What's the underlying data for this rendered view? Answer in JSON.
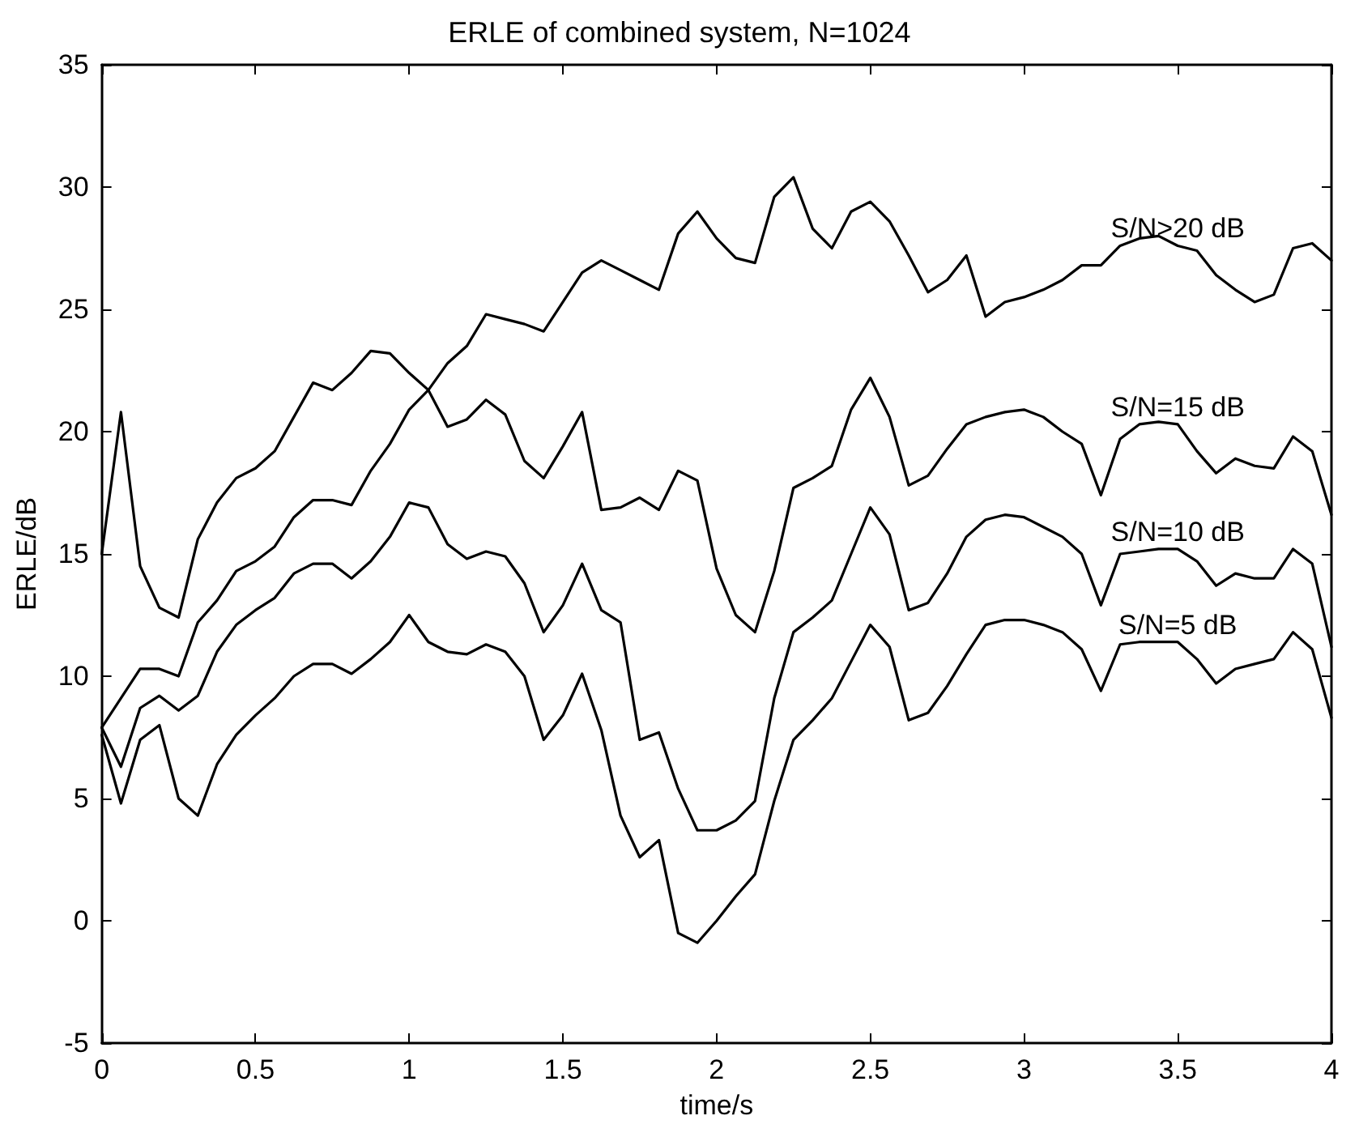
{
  "chart_data": {
    "type": "line",
    "title": "ERLE of combined system, N=1024",
    "xlabel": "time/s",
    "ylabel": "ERLE/dB",
    "x": [
      0,
      0.0625,
      0.125,
      0.1875,
      0.25,
      0.3125,
      0.375,
      0.4375,
      0.5,
      0.5625,
      0.625,
      0.6875,
      0.75,
      0.8125,
      0.875,
      0.9375,
      1,
      1.0625,
      1.125,
      1.1875,
      1.25,
      1.3125,
      1.375,
      1.4375,
      1.5,
      1.5625,
      1.625,
      1.6875,
      1.75,
      1.8125,
      1.875,
      1.9375,
      2,
      2.0625,
      2.125,
      2.1875,
      2.25,
      2.3125,
      2.375,
      2.4375,
      2.5,
      2.5625,
      2.625,
      2.6875,
      2.75,
      2.8125,
      2.875,
      2.9375,
      3,
      3.0625,
      3.125,
      3.1875,
      3.25,
      3.3125,
      3.375,
      3.4375,
      3.5,
      3.5625,
      3.625,
      3.6875,
      3.75,
      3.8125,
      3.875,
      3.9375,
      4
    ],
    "series": [
      {
        "name": "S/N>20 dB",
        "color": "#000000",
        "values": [
          7.9,
          9.1,
          10.3,
          10.3,
          10.0,
          12.2,
          13.1,
          14.3,
          14.7,
          15.3,
          16.5,
          17.2,
          17.2,
          17.0,
          18.4,
          19.5,
          20.9,
          21.7,
          22.8,
          23.5,
          24.8,
          24.6,
          24.4,
          24.1,
          25.3,
          26.5,
          27.0,
          26.6,
          26.2,
          25.8,
          28.1,
          29.0,
          27.9,
          27.1,
          26.9,
          29.6,
          30.4,
          28.3,
          27.5,
          29.0,
          29.4,
          28.6,
          27.2,
          25.7,
          26.2,
          27.2,
          24.7,
          25.3,
          25.5,
          25.8,
          26.2,
          26.8,
          26.8,
          27.6,
          27.9,
          28.0,
          27.6,
          27.4,
          26.4,
          25.8,
          25.3,
          25.6,
          27.5,
          27.7,
          27.0
        ]
      },
      {
        "name": "S/N=15 dB",
        "color": "#000000",
        "values": [
          15,
          20.8,
          14.5,
          12.8,
          12.4,
          15.6,
          17.1,
          18.1,
          18.5,
          19.2,
          20.6,
          22.0,
          21.7,
          22.4,
          23.3,
          23.2,
          22.4,
          21.7,
          20.2,
          20.5,
          21.3,
          20.7,
          18.8,
          18.1,
          19.4,
          20.8,
          16.8,
          16.9,
          17.3,
          16.8,
          18.4,
          18.0,
          14.4,
          12.5,
          11.8,
          14.3,
          17.7,
          18.1,
          18.6,
          20.9,
          22.2,
          20.6,
          17.8,
          18.2,
          19.3,
          20.3,
          20.6,
          20.8,
          20.9,
          20.6,
          20.0,
          19.5,
          17.4,
          19.7,
          20.3,
          20.4,
          20.3,
          19.2,
          18.3,
          18.9,
          18.6,
          18.5,
          19.8,
          19.2,
          16.6
        ]
      },
      {
        "name": "S/N=10 dB",
        "color": "#000000",
        "values": [
          7.9,
          6.3,
          8.7,
          9.2,
          8.6,
          9.2,
          11.0,
          12.1,
          12.7,
          13.2,
          14.2,
          14.6,
          14.6,
          14.0,
          14.7,
          15.7,
          17.1,
          16.9,
          15.4,
          14.8,
          15.1,
          14.9,
          13.8,
          11.8,
          12.9,
          14.6,
          12.7,
          12.2,
          7.4,
          7.7,
          5.4,
          3.7,
          3.7,
          4.1,
          4.9,
          9.1,
          11.8,
          12.4,
          13.1,
          15.0,
          16.9,
          15.8,
          12.7,
          13.0,
          14.2,
          15.7,
          16.4,
          16.6,
          16.5,
          16.1,
          15.7,
          15.0,
          12.9,
          15.0,
          15.1,
          15.2,
          15.2,
          14.7,
          13.7,
          14.2,
          14.0,
          14.0,
          15.2,
          14.6,
          11.2
        ]
      },
      {
        "name": "S/N=5 dB",
        "color": "#000000",
        "values": [
          7.6,
          4.8,
          7.4,
          8.0,
          5.0,
          4.3,
          6.4,
          7.6,
          8.4,
          9.1,
          10.0,
          10.5,
          10.5,
          10.1,
          10.7,
          11.4,
          12.5,
          11.4,
          11.0,
          10.9,
          11.3,
          11.0,
          10.0,
          7.4,
          8.4,
          10.1,
          7.8,
          4.3,
          2.6,
          3.3,
          -0.5,
          -0.9,
          0.0,
          1.0,
          1.9,
          4.9,
          7.4,
          8.2,
          9.1,
          10.6,
          12.1,
          11.2,
          8.2,
          8.5,
          9.6,
          10.9,
          12.1,
          12.3,
          12.3,
          12.1,
          11.8,
          11.1,
          9.4,
          11.3,
          11.4,
          11.4,
          11.4,
          10.7,
          9.7,
          10.3,
          10.5,
          10.7,
          11.8,
          11.1,
          8.3
        ]
      }
    ],
    "xlim": [
      0,
      4
    ],
    "xticks": [
      0,
      0.5,
      1,
      1.5,
      2,
      2.5,
      3,
      3.5,
      4
    ],
    "ylim": [
      -5,
      35
    ],
    "yticks": [
      -5,
      0,
      5,
      10,
      15,
      20,
      25,
      30,
      35
    ],
    "grid": false,
    "legend": false,
    "marker": "none",
    "line_style": "solid"
  }
}
